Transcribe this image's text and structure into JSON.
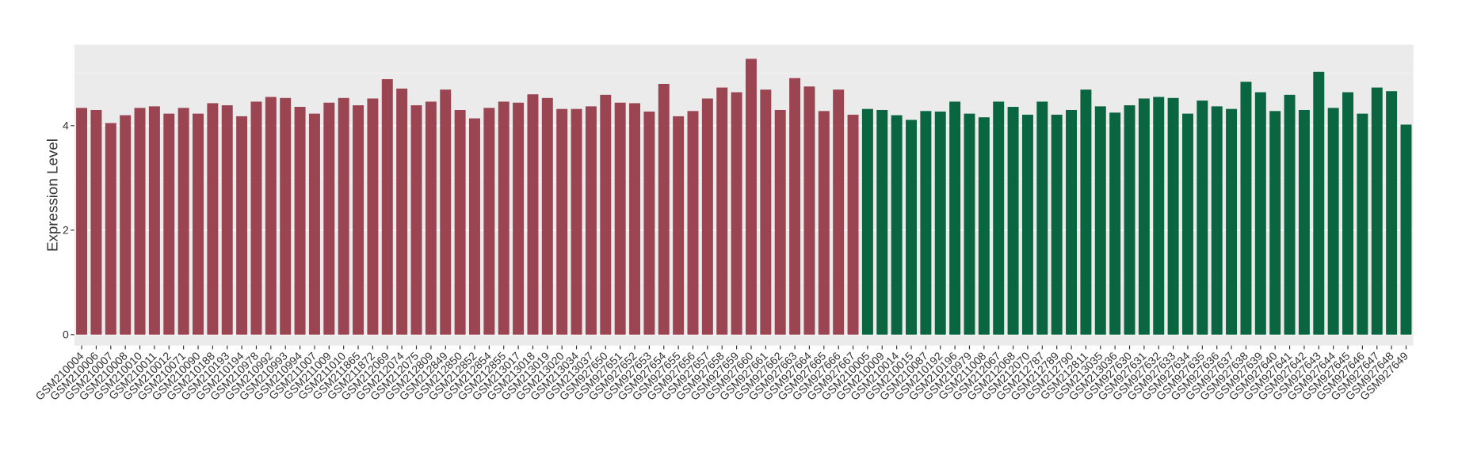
{
  "chart_data": {
    "type": "bar",
    "y_label": "Expression Level",
    "categories": [
      "GSM210004",
      "GSM210006",
      "GSM210007",
      "GSM210008",
      "GSM210010",
      "GSM210011",
      "GSM210012",
      "GSM210071",
      "GSM210090",
      "GSM210188",
      "GSM210193",
      "GSM210194",
      "GSM210978",
      "GSM210992",
      "GSM210993",
      "GSM210994",
      "GSM211007",
      "GSM211009",
      "GSM211010",
      "GSM211865",
      "GSM211872",
      "GSM212069",
      "GSM212074",
      "GSM212075",
      "GSM212809",
      "GSM212849",
      "GSM212850",
      "GSM212852",
      "GSM212854",
      "GSM212855",
      "GSM213017",
      "GSM213018",
      "GSM213019",
      "GSM213020",
      "GSM213034",
      "GSM213037",
      "GSM927650",
      "GSM927651",
      "GSM927652",
      "GSM927653",
      "GSM927654",
      "GSM927655",
      "GSM927656",
      "GSM927657",
      "GSM927658",
      "GSM927659",
      "GSM927660",
      "GSM927661",
      "GSM927662",
      "GSM927663",
      "GSM927664",
      "GSM927665",
      "GSM927666",
      "GSM927667",
      "GSM210005",
      "GSM210009",
      "GSM210014",
      "GSM210015",
      "GSM210087",
      "GSM210192",
      "GSM210196",
      "GSM210979",
      "GSM211008",
      "GSM212067",
      "GSM212068",
      "GSM212070",
      "GSM212787",
      "GSM212789",
      "GSM212790",
      "GSM212811",
      "GSM213035",
      "GSM213036",
      "GSM927630",
      "GSM927631",
      "GSM927632",
      "GSM927633",
      "GSM927634",
      "GSM927635",
      "GSM927636",
      "GSM927637",
      "GSM927638",
      "GSM927639",
      "GSM927640",
      "GSM927641",
      "GSM927642",
      "GSM927643",
      "GSM927644",
      "GSM927645",
      "GSM927646",
      "GSM927647",
      "GSM927648",
      "GSM927649"
    ],
    "series": [
      {
        "color": "#9b4452",
        "values": [
          4.34,
          4.3,
          4.05,
          4.2,
          4.34,
          4.37,
          4.23,
          4.34,
          4.23,
          4.43,
          4.39,
          4.18,
          4.46,
          4.55,
          4.53,
          4.36,
          4.23,
          4.44,
          4.53,
          4.39,
          4.52,
          4.89,
          4.71,
          4.39,
          4.46,
          4.69,
          4.3,
          4.14,
          4.34,
          4.46,
          4.44,
          4.6,
          4.53,
          4.32,
          4.32,
          4.37,
          4.59,
          4.44,
          4.43,
          4.27,
          4.8,
          4.18,
          4.28,
          4.52,
          4.73,
          4.64,
          5.28,
          4.69,
          4.3,
          4.91,
          4.75,
          4.28,
          4.69,
          4.21,
          null,
          null,
          null,
          null,
          null,
          null,
          null,
          null,
          null,
          null,
          null,
          null,
          null,
          null,
          null,
          null,
          null,
          null,
          null,
          null,
          null,
          null,
          null,
          null,
          null,
          null,
          null,
          null,
          null,
          null,
          null,
          null,
          null,
          null,
          null,
          null,
          null,
          null
        ]
      },
      {
        "color": "#0a6640",
        "values": [
          null,
          null,
          null,
          null,
          null,
          null,
          null,
          null,
          null,
          null,
          null,
          null,
          null,
          null,
          null,
          null,
          null,
          null,
          null,
          null,
          null,
          null,
          null,
          null,
          null,
          null,
          null,
          null,
          null,
          null,
          null,
          null,
          null,
          null,
          null,
          null,
          null,
          null,
          null,
          null,
          null,
          null,
          null,
          null,
          null,
          null,
          null,
          null,
          null,
          null,
          null,
          null,
          null,
          null,
          4.32,
          4.3,
          4.2,
          4.11,
          4.28,
          4.27,
          4.46,
          4.23,
          4.16,
          4.46,
          4.36,
          4.21,
          4.46,
          4.21,
          4.3,
          4.69,
          4.37,
          4.25,
          4.39,
          4.52,
          4.55,
          4.53,
          4.23,
          4.48,
          4.37,
          4.32,
          4.84,
          4.64,
          4.28,
          4.59,
          4.3,
          5.03,
          4.34,
          4.64,
          4.23,
          4.73,
          4.66,
          4.02
        ]
      }
    ],
    "ylim": [
      -0.21,
      5.55
    ],
    "yticks": [
      0,
      2,
      4
    ],
    "grid": true
  }
}
